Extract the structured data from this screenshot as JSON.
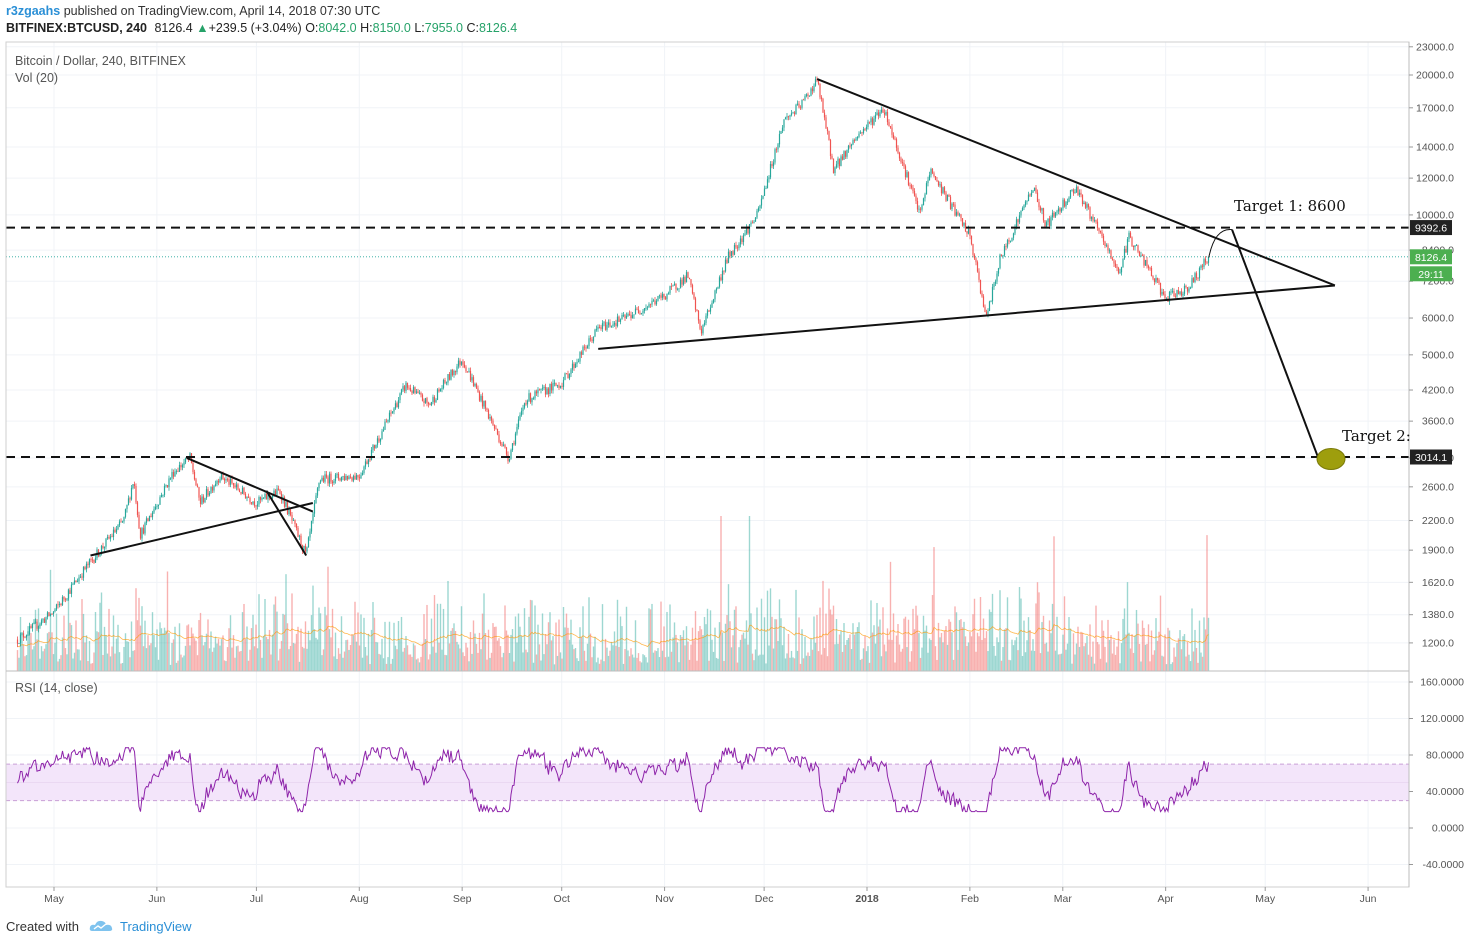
{
  "header": {
    "author": "r3zgaahs",
    "published": "published on TradingView.com, April 14, 2018 07:30 UTC",
    "symbol": "BITFINEX:BTCUSD, 240",
    "last": "8126.4",
    "change_arrow": "▲",
    "change": "+239.5 (+3.04%)",
    "open_label": "O:",
    "open": "8042.0",
    "high_label": "H:",
    "high": "8150.0",
    "low_label": "L:",
    "low": "7955.0",
    "close_label": "C:",
    "close": "8126.4"
  },
  "legend": {
    "main": "Bitcoin / Dollar, 240, BITFINEX",
    "volume": "Vol (20)",
    "rsi": "RSI (14, close)"
  },
  "footer": {
    "created": "Created with",
    "brand": "TradingView",
    "logo_icon": "tradingview-cloud-icon"
  },
  "badges": {
    "level_high": "9392.6",
    "last_price": "8126.4",
    "countdown": "29:11",
    "level_low": "3014.1"
  },
  "annotations": {
    "target1": "Target 1: 8600",
    "target2": "Target 2:"
  },
  "colors": {
    "up": "#26a69a",
    "down": "#ef5350",
    "rsi": "#8e24aa",
    "rsi_band": "#f3e5fa",
    "badge_dark": "#222222",
    "badge_green": "#4caf50",
    "marker": "#9e9e0d"
  },
  "chart_data": {
    "type": "candlestick",
    "price_axis": {
      "scale": "log",
      "ticks": [
        "23000.0",
        "20000.0",
        "17000.0",
        "14000.0",
        "12000.0",
        "10000.0",
        "8400.0",
        "7200.0",
        "6000.0",
        "5000.0",
        "4200.0",
        "3600.0",
        "3000.0",
        "2600.0",
        "2200.0",
        "1900.0",
        "1620.0",
        "1380.0",
        "1200.0"
      ]
    },
    "rsi_axis": {
      "ticks": [
        "160.0000",
        "120.0000",
        "80.0000",
        "40.0000",
        "0.0000",
        "-40.0000"
      ],
      "band": [
        30,
        70
      ]
    },
    "time_axis": {
      "ticks": [
        {
          "label": "May",
          "bold": false
        },
        {
          "label": "Jun",
          "bold": false
        },
        {
          "label": "Jul",
          "bold": false
        },
        {
          "label": "Aug",
          "bold": false
        },
        {
          "label": "Sep",
          "bold": false
        },
        {
          "label": "Oct",
          "bold": false
        },
        {
          "label": "Nov",
          "bold": false
        },
        {
          "label": "Dec",
          "bold": false
        },
        {
          "label": "2018",
          "bold": true
        },
        {
          "label": "Feb",
          "bold": false
        },
        {
          "label": "Mar",
          "bold": false
        },
        {
          "label": "Apr",
          "bold": false
        },
        {
          "label": "May",
          "bold": false
        },
        {
          "label": "Jun",
          "bold": false
        }
      ]
    },
    "price_path": [
      [
        "2017-04-20",
        1220
      ],
      [
        "2017-05-01",
        1400
      ],
      [
        "2017-05-10",
        1720
      ],
      [
        "2017-05-22",
        2200
      ],
      [
        "2017-05-25",
        2700
      ],
      [
        "2017-05-27",
        2050
      ],
      [
        "2017-06-06",
        2800
      ],
      [
        "2017-06-11",
        3000
      ],
      [
        "2017-06-14",
        2400
      ],
      [
        "2017-06-20",
        2750
      ],
      [
        "2017-07-01",
        2400
      ],
      [
        "2017-07-08",
        2550
      ],
      [
        "2017-07-16",
        1850
      ],
      [
        "2017-07-20",
        2700
      ],
      [
        "2017-08-01",
        2750
      ],
      [
        "2017-08-15",
        4300
      ],
      [
        "2017-08-22",
        3900
      ],
      [
        "2017-09-01",
        4900
      ],
      [
        "2017-09-15",
        3000
      ],
      [
        "2017-09-20",
        4000
      ],
      [
        "2017-10-01",
        4350
      ],
      [
        "2017-10-12",
        5700
      ],
      [
        "2017-10-20",
        6000
      ],
      [
        "2017-11-01",
        6700
      ],
      [
        "2017-11-08",
        7400
      ],
      [
        "2017-11-12",
        5600
      ],
      [
        "2017-11-20",
        8100
      ],
      [
        "2017-11-29",
        10000
      ],
      [
        "2017-12-07",
        16000
      ],
      [
        "2017-12-12",
        17200
      ],
      [
        "2017-12-17",
        19500
      ],
      [
        "2017-12-22",
        12500
      ],
      [
        "2017-12-28",
        14500
      ],
      [
        "2018-01-06",
        17000
      ],
      [
        "2018-01-17",
        10000
      ],
      [
        "2018-01-20",
        12500
      ],
      [
        "2018-02-01",
        9000
      ],
      [
        "2018-02-06",
        6000
      ],
      [
        "2018-02-10",
        8000
      ],
      [
        "2018-02-20",
        11500
      ],
      [
        "2018-02-24",
        9500
      ],
      [
        "2018-03-05",
        11500
      ],
      [
        "2018-03-18",
        7500
      ],
      [
        "2018-03-21",
        9000
      ],
      [
        "2018-04-01",
        6600
      ],
      [
        "2018-04-08",
        7000
      ],
      [
        "2018-04-14",
        8126.4
      ]
    ],
    "levels": [
      9392.6,
      8126.4,
      3014.1
    ]
  }
}
